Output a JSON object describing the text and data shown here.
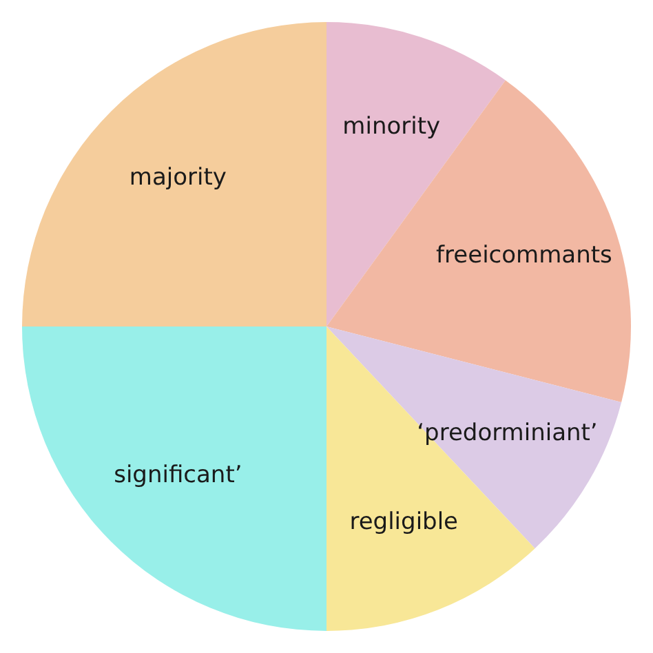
{
  "chart_data": {
    "type": "pie",
    "categories": [
      "minority",
      "freeicommants",
      "‘predorminiant’",
      "regligible",
      "significant’",
      "majority"
    ],
    "values": [
      10,
      19,
      9,
      12,
      25,
      25
    ],
    "colors": [
      "#e8bdd1",
      "#f2b8a3",
      "#dccbe6",
      "#f8e797",
      "#98efe9",
      "#f5cd9c"
    ]
  }
}
